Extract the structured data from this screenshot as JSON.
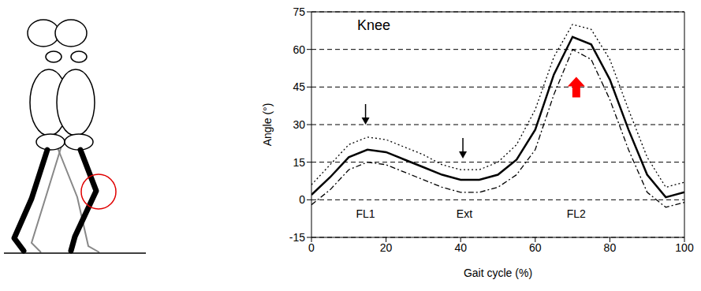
{
  "chart_data": {
    "type": "line",
    "title": "Knee",
    "x_label": "Gait cycle (%)",
    "y_label": "Angle (°)",
    "x": [
      0,
      5,
      10,
      15,
      20,
      25,
      30,
      35,
      40,
      45,
      50,
      55,
      60,
      65,
      70,
      75,
      80,
      85,
      90,
      95,
      100
    ],
    "series": [
      {
        "color": "#000000",
        "line_style": "solid",
        "values": [
          2,
          9,
          17,
          20,
          19,
          16,
          13,
          10,
          8,
          8,
          10,
          16,
          28,
          50,
          65,
          62,
          48,
          28,
          10,
          1,
          3
        ]
      },
      {
        "color": "#000000",
        "line_style": "dotted",
        "values": [
          6,
          14,
          22,
          25,
          24,
          21,
          18,
          14,
          12,
          12,
          15,
          22,
          36,
          57,
          70,
          68,
          56,
          36,
          17,
          5,
          7
        ]
      },
      {
        "color": "#000000",
        "line_style": "dashdot",
        "values": [
          -2,
          4,
          12,
          15,
          14,
          11,
          8,
          5,
          3,
          3,
          5,
          10,
          20,
          42,
          60,
          56,
          40,
          20,
          3,
          -3,
          -1
        ]
      }
    ],
    "xlim": [
      0,
      100
    ],
    "xticks": [
      0,
      20,
      40,
      60,
      80,
      100
    ],
    "ylim": [
      -15,
      75
    ],
    "yticks": [
      -15,
      0,
      15,
      30,
      45,
      60,
      75
    ],
    "grid": true,
    "annotations": [
      {
        "text": "FL1",
        "x": 14.5,
        "y": -6
      },
      {
        "text": "Ext",
        "x": 41,
        "y": -6
      },
      {
        "text": "FL2",
        "x": 71,
        "y": -6
      }
    ],
    "arrows": [
      {
        "x": 14.5,
        "y": 30,
        "marker": "arrow_down",
        "color": "#000000"
      },
      {
        "x": 40.6,
        "y": 16.5,
        "marker": "arrow_down",
        "color": "#000000"
      },
      {
        "x": 71,
        "y": 49,
        "marker": "block_arrow_up",
        "color": "#ff0000"
      }
    ]
  }
}
